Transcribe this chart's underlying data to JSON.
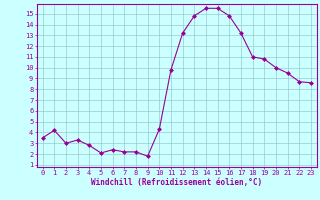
{
  "x": [
    0,
    1,
    2,
    3,
    4,
    5,
    6,
    7,
    8,
    9,
    10,
    11,
    12,
    13,
    14,
    15,
    16,
    17,
    18,
    19,
    20,
    21,
    22,
    23
  ],
  "y": [
    3.5,
    4.2,
    3.0,
    3.3,
    2.8,
    2.1,
    2.4,
    2.2,
    2.2,
    1.8,
    4.3,
    9.8,
    13.2,
    14.8,
    15.5,
    15.5,
    14.8,
    13.2,
    11.0,
    10.8,
    10.0,
    9.5,
    8.7,
    8.6
  ],
  "line_color": "#990099",
  "marker": "D",
  "markersize": 2.0,
  "linewidth": 0.8,
  "bg_color": "#ccffff",
  "grid_color": "#99cccc",
  "axis_color": "#990099",
  "xlabel": "Windchill (Refroidissement éolien,°C)",
  "xlabel_fontsize": 5.5,
  "tick_fontsize": 5.0,
  "xlim": [
    -0.5,
    23.5
  ],
  "ylim": [
    0.8,
    15.9
  ],
  "yticks": [
    1,
    2,
    3,
    4,
    5,
    6,
    7,
    8,
    9,
    10,
    11,
    12,
    13,
    14,
    15
  ],
  "xticks": [
    0,
    1,
    2,
    3,
    4,
    5,
    6,
    7,
    8,
    9,
    10,
    11,
    12,
    13,
    14,
    15,
    16,
    17,
    18,
    19,
    20,
    21,
    22,
    23
  ]
}
